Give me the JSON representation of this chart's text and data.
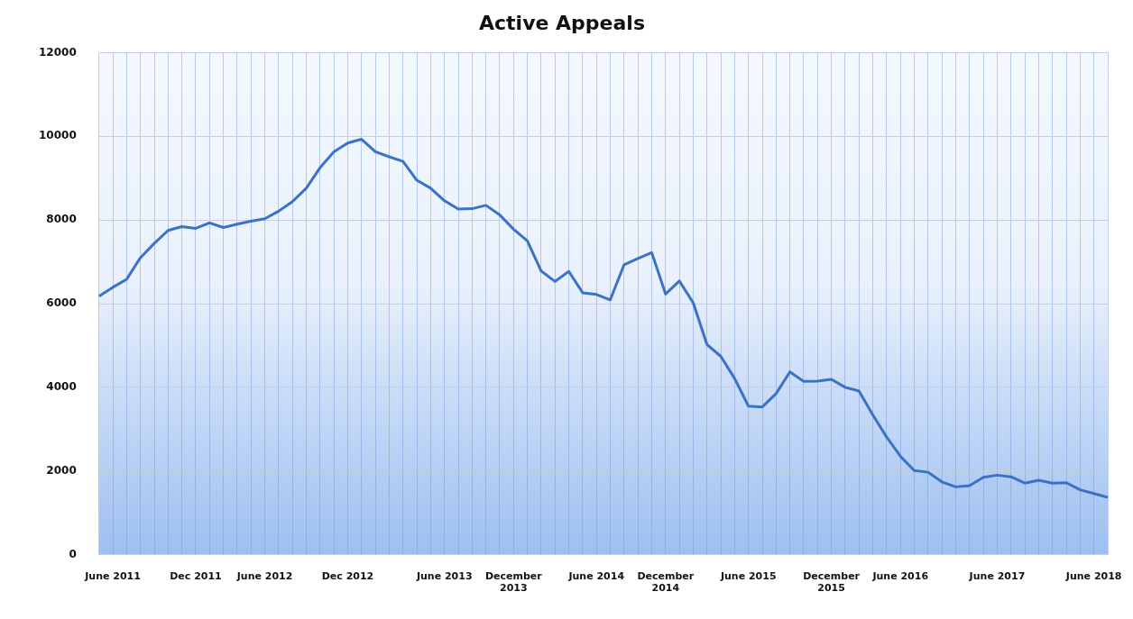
{
  "chart_data": {
    "type": "line",
    "title": "Active Appeals",
    "categories": [
      null,
      "June 2011",
      null,
      null,
      null,
      null,
      null,
      "Dec 2011",
      null,
      null,
      null,
      null,
      "June 2012",
      null,
      null,
      null,
      null,
      null,
      "Dec 2012",
      null,
      null,
      null,
      null,
      null,
      null,
      "June 2013",
      null,
      null,
      null,
      null,
      "December 2013",
      null,
      null,
      null,
      null,
      null,
      "June 2014",
      null,
      null,
      null,
      null,
      "December 2014",
      null,
      null,
      null,
      null,
      null,
      "June 2015",
      null,
      null,
      null,
      null,
      null,
      "December 2015",
      null,
      null,
      null,
      null,
      "June 2016",
      null,
      null,
      null,
      null,
      null,
      null,
      "June 2017",
      null,
      null,
      null,
      null,
      null,
      null,
      "June 2018",
      null
    ],
    "series": [
      {
        "color": "#3a72c8",
        "values": [
          6180,
          6390,
          6580,
          7100,
          7440,
          7750,
          7840,
          7800,
          7930,
          7820,
          7900,
          7970,
          8030,
          8210,
          8440,
          8760,
          9250,
          9630,
          9840,
          9930,
          9630,
          9510,
          9400,
          8950,
          8760,
          8460,
          8260,
          8270,
          8350,
          8120,
          7780,
          7500,
          6780,
          6530,
          6770,
          6260,
          6220,
          6090,
          6930,
          7080,
          7220,
          6230,
          6540,
          6020,
          5020,
          4740,
          4210,
          3550,
          3530,
          3850,
          4370,
          4140,
          4150,
          4190,
          4000,
          3910,
          3340,
          2810,
          2350,
          2010,
          1970,
          1740,
          1620,
          1650,
          1850,
          1900,
          1860,
          1710,
          1780,
          1710,
          1720,
          1550,
          1460,
          1370
        ]
      }
    ],
    "ylim": [
      0,
      12000
    ],
    "yticks": [
      0,
      2000,
      4000,
      6000,
      8000,
      10000,
      12000
    ],
    "grid": true,
    "marker": "none",
    "line_style": "solid",
    "legend": false
  }
}
